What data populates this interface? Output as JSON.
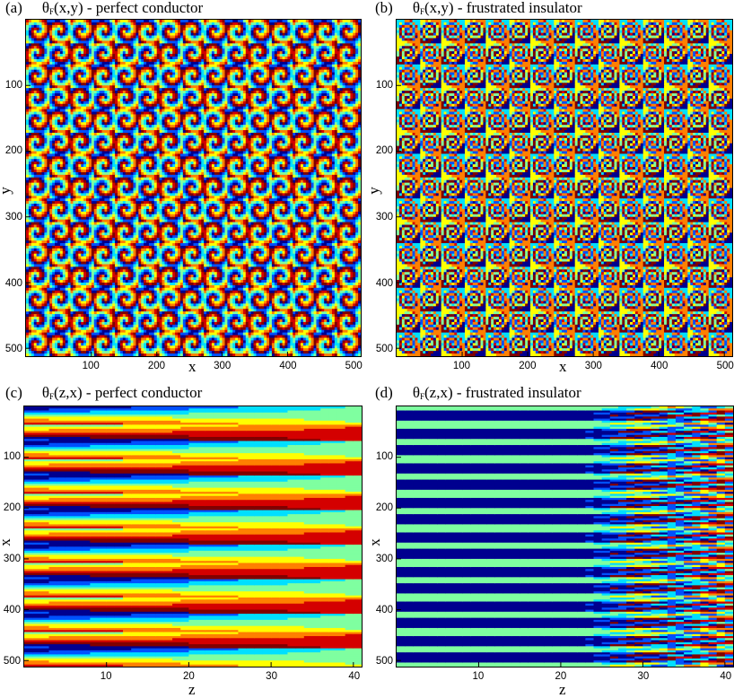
{
  "chart_data": [
    {
      "type": "heatmap",
      "panel_label": "(a)",
      "title_symbol": "θ",
      "title_sub": "F",
      "title_rest": "(x,y) - perfect conductor",
      "xlabel": "x",
      "ylabel": "y",
      "xlim": [
        0,
        512
      ],
      "ylim": [
        512,
        0
      ],
      "xticks": [
        100,
        200,
        300,
        400,
        500
      ],
      "yticks": [
        100,
        200,
        300,
        400,
        500
      ],
      "pattern": "rotating spirals",
      "cell_period": 34
    },
    {
      "type": "heatmap",
      "panel_label": "(b)",
      "title_symbol": "θ",
      "title_sub": "F",
      "title_rest": "(x,y) - frustrated insulator",
      "xlabel": "x",
      "ylabel": "y",
      "xlim": [
        0,
        512
      ],
      "ylim": [
        512,
        0
      ],
      "xticks": [
        100,
        200,
        300,
        400,
        500
      ],
      "yticks": [
        100,
        200,
        300,
        400,
        500
      ],
      "pattern": "concentric spirals on checkerboard",
      "cell_period": 34
    },
    {
      "type": "heatmap",
      "panel_label": "(c)",
      "title_symbol": "θ",
      "title_sub": "F",
      "title_rest": "(z,x) - perfect conductor",
      "xlabel": "z",
      "ylabel": "x",
      "xlim": [
        0,
        41
      ],
      "ylim": [
        512,
        0
      ],
      "xticks": [
        10,
        20,
        30,
        40
      ],
      "yticks": [
        100,
        200,
        300,
        400,
        500
      ],
      "pattern": "converging stripes",
      "cell_period": 34
    },
    {
      "type": "heatmap",
      "panel_label": "(d)",
      "title_symbol": "θ",
      "title_sub": "F",
      "title_rest": "(z,x) - frustrated insulator",
      "xlabel": "z",
      "ylabel": "x",
      "xlim": [
        0,
        41
      ],
      "ylim": [
        512,
        0
      ],
      "xticks": [
        10,
        20,
        30,
        40
      ],
      "yticks": [
        100,
        200,
        300,
        400,
        500
      ],
      "pattern": "stripes with diverging fringes",
      "cell_period": 34
    }
  ],
  "colormap": [
    "#00008f",
    "#0050ff",
    "#00dfff",
    "#7fffa0",
    "#ffff00",
    "#ff8000",
    "#d40000",
    "#800000"
  ]
}
